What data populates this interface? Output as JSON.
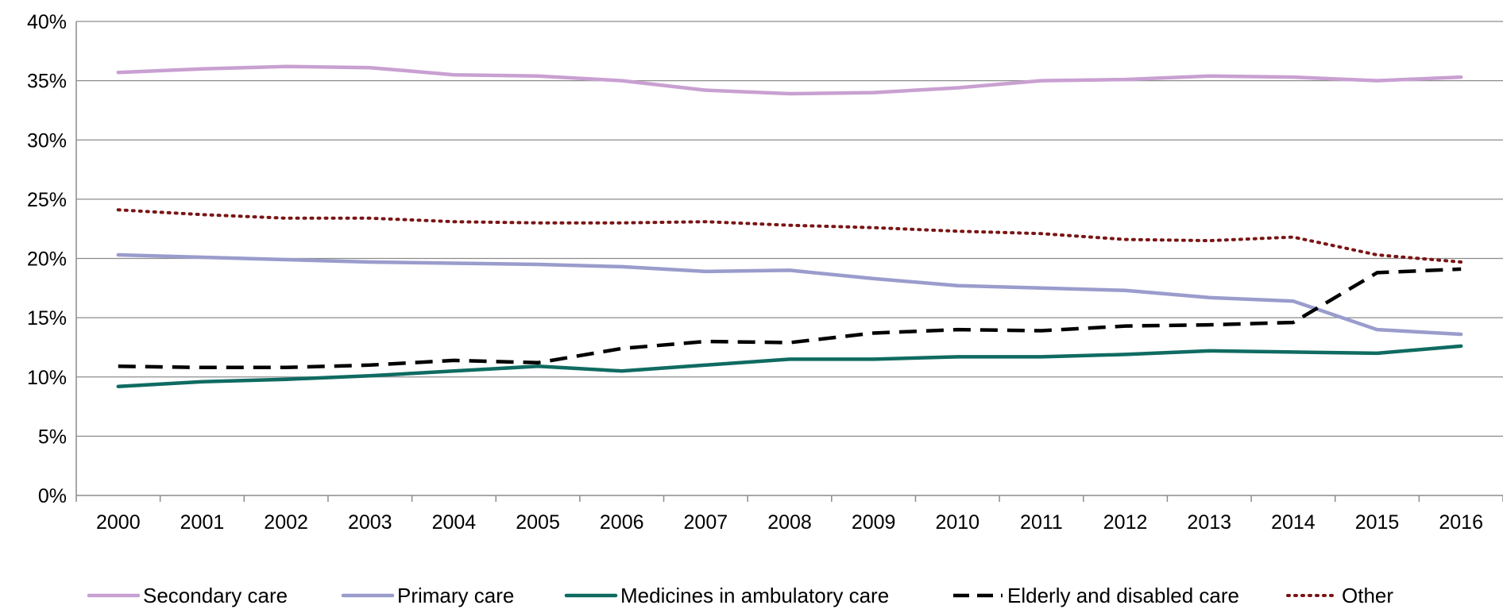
{
  "chart_data": {
    "type": "line",
    "title": "",
    "xlabel": "",
    "ylabel": "",
    "x": [
      "2000",
      "2001",
      "2002",
      "2003",
      "2004",
      "2005",
      "2006",
      "2007",
      "2008",
      "2009",
      "2010",
      "2011",
      "2012",
      "2013",
      "2014",
      "2015",
      "2016"
    ],
    "ylim": [
      0,
      40
    ],
    "yticks": [
      "0%",
      "5%",
      "10%",
      "15%",
      "20%",
      "25%",
      "30%",
      "35%",
      "40%"
    ],
    "grid": "horizontal",
    "legend_position": "bottom",
    "series": [
      {
        "name": "Secondary care",
        "color": "#c9a0d2",
        "style": "solid",
        "values": [
          35.7,
          36.0,
          36.2,
          36.1,
          35.5,
          35.4,
          35.0,
          34.2,
          33.9,
          34.0,
          34.4,
          35.0,
          35.1,
          35.4,
          35.3,
          35.0,
          35.3
        ]
      },
      {
        "name": "Primary care",
        "color": "#9a9ccc",
        "style": "solid",
        "values": [
          20.3,
          20.1,
          19.9,
          19.7,
          19.6,
          19.5,
          19.3,
          18.9,
          19.0,
          18.3,
          17.7,
          17.5,
          17.3,
          16.7,
          16.4,
          14.0,
          13.6
        ]
      },
      {
        "name": "Medicines in ambulatory care",
        "color": "#0f6b61",
        "style": "solid",
        "values": [
          9.2,
          9.6,
          9.8,
          10.1,
          10.5,
          10.9,
          10.5,
          11.0,
          11.5,
          11.5,
          11.7,
          11.7,
          11.9,
          12.2,
          12.1,
          12.0,
          12.6
        ]
      },
      {
        "name": "Elderly and disabled care",
        "color": "#000000",
        "style": "dashed",
        "values": [
          10.9,
          10.8,
          10.8,
          11.0,
          11.4,
          11.2,
          12.4,
          13.0,
          12.9,
          13.7,
          14.0,
          13.9,
          14.3,
          14.4,
          14.6,
          18.8,
          19.1
        ]
      },
      {
        "name": "Other",
        "color": "#7a1414",
        "style": "dotted",
        "values": [
          24.1,
          23.7,
          23.4,
          23.4,
          23.1,
          23.0,
          23.0,
          23.1,
          22.8,
          22.6,
          22.3,
          22.1,
          21.6,
          21.5,
          21.8,
          20.3,
          19.7
        ]
      }
    ]
  }
}
